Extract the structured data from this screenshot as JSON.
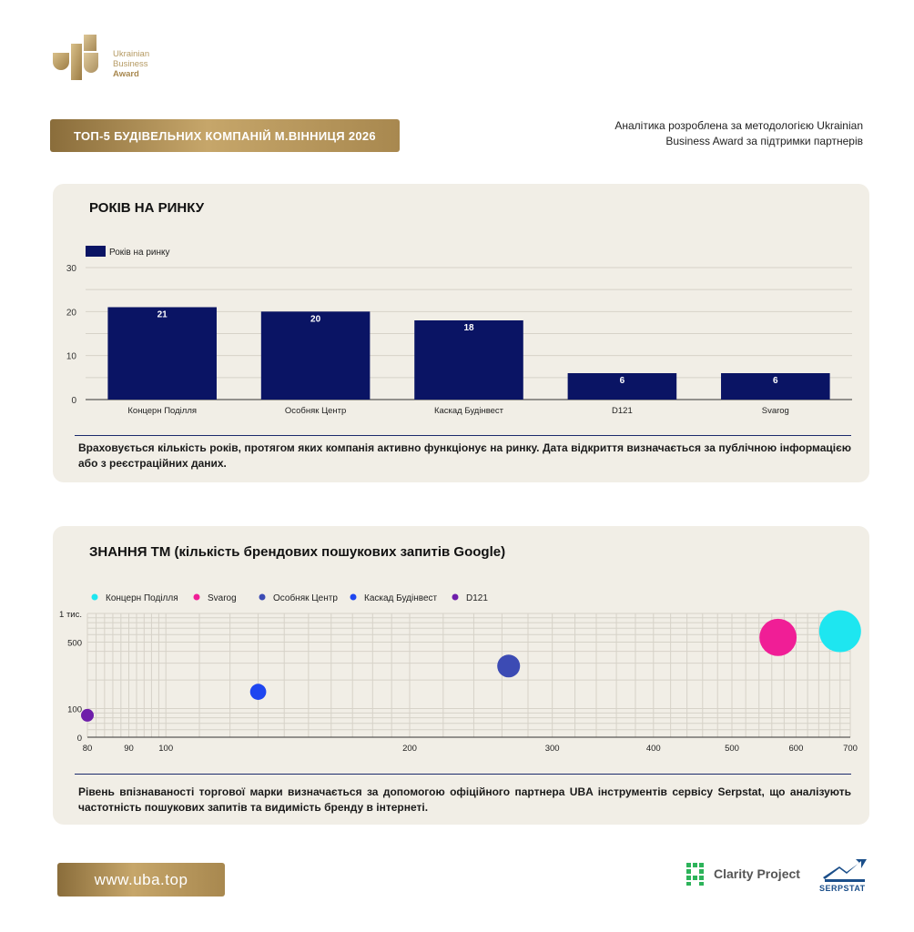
{
  "logo": {
    "line1": "Ukrainian",
    "line2": "Business",
    "line3": "Award"
  },
  "title_badge": "ТОП-5 БУДІВЕЛЬНИХ КОМПАНІЙ М.ВІННИЦЯ 2026",
  "header_note": "Аналітика розроблена за методологією Ukrainian Business Award за підтримки партнерів",
  "colors": {
    "gold": "#b59a63",
    "bar": "#0a1464",
    "card": "#f1eee6"
  },
  "card1": {
    "title": "РОКІВ НА РИНКУ",
    "note": "Враховується кількість років, протягом яких компанія активно функціонує на ринку. Дата відкриття визначається за публічною інформацією або з реєстраційних даних."
  },
  "card2": {
    "title": "ЗНАННЯ ТМ (кількість брендових пошукових запитів Google)",
    "note": "Рівень впізнаваності торгової марки визначається за допомогою офіційного партнера UBA інструментів сервісу Serpstat, що аналізують частотність пошукових запитів та видимість бренду в інтернеті."
  },
  "chart_data": [
    {
      "type": "bar",
      "title": "РОКІВ НА РИНКУ",
      "categories": [
        "Концерн Поділля",
        "Особняк Центр",
        "Каскад Будінвест",
        "D121",
        "Svarog"
      ],
      "series": [
        {
          "name": "Років на ринку",
          "values": [
            21,
            20,
            18,
            6,
            6
          ],
          "color": "#0a1464"
        }
      ],
      "yticks": [
        "0",
        "10",
        "20",
        "30"
      ],
      "ylim": [
        0,
        30
      ],
      "legend": "top-left",
      "grid": true
    },
    {
      "type": "scatter",
      "title": "ЗНАННЯ ТМ (кількість брендових пошукових запитів Google)",
      "x_scale": "log",
      "y_scale": "log",
      "xticks": [
        "80",
        "90",
        "100",
        "200",
        "300",
        "400",
        "500",
        "600",
        "700"
      ],
      "yticks": [
        "0",
        "100",
        "500",
        "1 тис."
      ],
      "series": [
        {
          "name": "Концерн Поділля",
          "color": "#1ee6f0",
          "x": 680,
          "y": 650,
          "size": 650
        },
        {
          "name": "Svarog",
          "color": "#f01e96",
          "x": 570,
          "y": 560,
          "size": 560
        },
        {
          "name": "Особняк Центр",
          "color": "#3c4bb4",
          "x": 265,
          "y": 280,
          "size": 280
        },
        {
          "name": "Каскад Будінвест",
          "color": "#1e46f0",
          "x": 130,
          "y": 150,
          "size": 150
        },
        {
          "name": "D121",
          "color": "#6e1eaa",
          "x": 80,
          "y": 85,
          "size": 85
        }
      ],
      "legend": "top-left",
      "grid": true
    }
  ],
  "footer": {
    "url": "www.uba.top",
    "clarity": "Clarity Project",
    "serpstat": "SERPSTAT"
  }
}
